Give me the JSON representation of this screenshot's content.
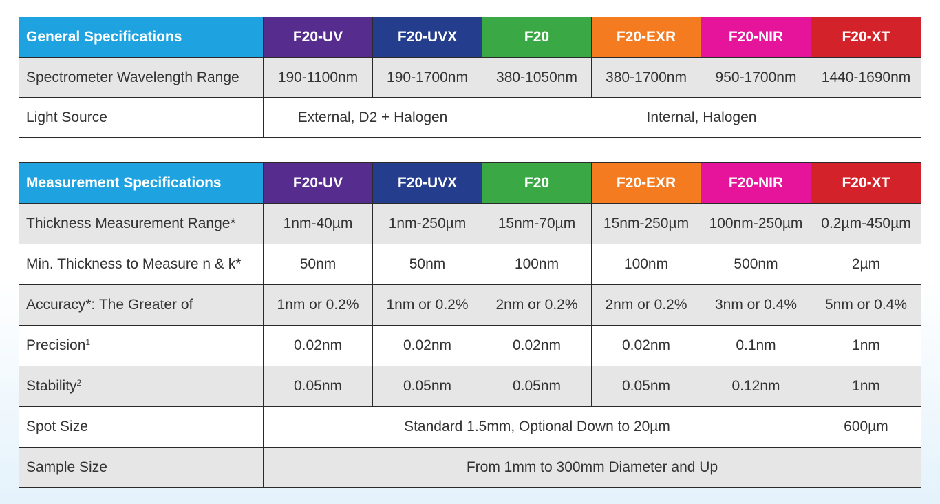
{
  "colors": {
    "header_label": "#1fa3e0",
    "F20-UV": "#562d8f",
    "F20-UVX": "#243d8c",
    "F20": "#3aa845",
    "F20-EXR": "#f47b20",
    "F20-NIR": "#e5149a",
    "F20-XT": "#d3222a",
    "row_shade": "#e6e6e6"
  },
  "models": [
    "F20-UV",
    "F20-UVX",
    "F20",
    "F20-EXR",
    "F20-NIR",
    "F20-XT"
  ],
  "general": {
    "title": "General Specifications",
    "rows": [
      {
        "label": "Spectrometer Wavelength Range",
        "values": [
          "190-1100nm",
          "190-1700nm",
          "380-1050nm",
          "380-1700nm",
          "950-1700nm",
          "1440-1690nm"
        ]
      },
      {
        "label": "Light Source",
        "group_a": "External, D2 + Halogen",
        "group_b": "Internal, Halogen"
      }
    ]
  },
  "measurement": {
    "title": "Measurement Specifications",
    "rows": [
      {
        "label": "Thickness Measurement Range*",
        "values": [
          "1nm-40µm",
          "1nm-250µm",
          "15nm-70µm",
          "15nm-250µm",
          "100nm-250µm",
          "0.2µm-450µm"
        ]
      },
      {
        "label": "Min. Thickness to Measure n & k*",
        "values": [
          "50nm",
          "50nm",
          "100nm",
          "100nm",
          "500nm",
          "2µm"
        ]
      },
      {
        "label": "Accuracy*: The Greater of",
        "values": [
          "1nm or 0.2%",
          "1nm or 0.2%",
          "2nm or 0.2%",
          "2nm or 0.2%",
          "3nm or 0.4%",
          "5nm or 0.4%"
        ]
      },
      {
        "label": "Precision",
        "sup": "1",
        "values": [
          "0.02nm",
          "0.02nm",
          "0.02nm",
          "0.02nm",
          "0.1nm",
          "1nm"
        ]
      },
      {
        "label": "Stability",
        "sup": "2",
        "values": [
          "0.05nm",
          "0.05nm",
          "0.05nm",
          "0.05nm",
          "0.12nm",
          "1nm"
        ]
      },
      {
        "label": "Spot Size",
        "span_value": "Standard 1.5mm, Optional Down to 20µm",
        "last_value": "600µm"
      },
      {
        "label": "Sample Size",
        "span_value": "From 1mm to 300mm Diameter and Up"
      }
    ]
  }
}
